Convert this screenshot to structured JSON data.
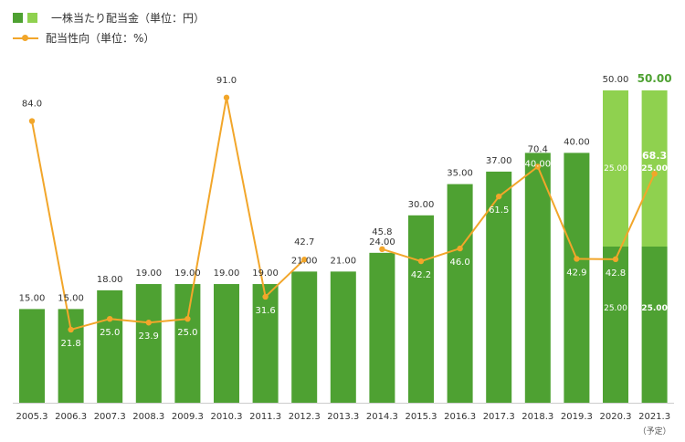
{
  "legend": {
    "dividend_label": "一株当たり配当金（単位：円）",
    "payout_label": "配当性向（単位：%）"
  },
  "colors": {
    "bar_dark": "#4ea132",
    "bar_light": "#8fd14f",
    "line": "#f2a62a",
    "label_text": "#333333",
    "inner_text": "#ffffff"
  },
  "chart_data": {
    "type": "bar",
    "categories": [
      "2005.3",
      "2006.3",
      "2007.3",
      "2008.3",
      "2009.3",
      "2010.3",
      "2011.3",
      "2012.3",
      "2013.3",
      "2014.3",
      "2015.3",
      "2016.3",
      "2017.3",
      "2018.3",
      "2019.3",
      "2020.3",
      "2021.3"
    ],
    "category_notes": [
      "",
      "",
      "",
      "",
      "",
      "",
      "",
      "",
      "",
      "",
      "",
      "",
      "",
      "",
      "",
      "",
      "（予定）"
    ],
    "series": [
      {
        "name": "一株当たり配当金（単位：円）",
        "kind": "bar",
        "values": [
          15,
          15,
          18,
          19,
          19,
          19,
          19,
          21,
          21,
          24,
          30,
          35,
          37,
          40,
          40,
          25,
          25
        ],
        "top_labels": [
          "15.00",
          "15.00",
          "18.00",
          "19.00",
          "19.00",
          "19.00",
          "19.00",
          "21.00",
          "21.00",
          "24.00",
          "30.00",
          "35.00",
          "37.00",
          "",
          "40.00",
          "",
          ""
        ]
      },
      {
        "name": "",
        "kind": "bar-stack",
        "values": [
          0,
          0,
          0,
          0,
          0,
          0,
          0,
          0,
          0,
          0,
          0,
          0,
          0,
          0,
          0,
          25,
          25
        ]
      },
      {
        "name": "配当性向（単位：%）",
        "kind": "line",
        "values": [
          84.0,
          21.8,
          25.0,
          23.9,
          25.0,
          91.0,
          31.6,
          42.7,
          null,
          45.8,
          42.2,
          46.0,
          61.5,
          70.4,
          42.9,
          42.8,
          68.3
        ]
      }
    ],
    "stack_annotations": [
      {
        "index": 13,
        "inner": "40.00"
      },
      {
        "index": 15,
        "total": "50.00",
        "upper": "25.00",
        "lower": "25.00",
        "bold": false
      },
      {
        "index": 16,
        "total": "50.00",
        "upper": "25.00",
        "lower": "25.00",
        "bold": true
      }
    ],
    "ylim_bar": [
      0,
      56
    ],
    "ylim_line": [
      0,
      100
    ],
    "grid": false,
    "legend_position": "top-left"
  }
}
